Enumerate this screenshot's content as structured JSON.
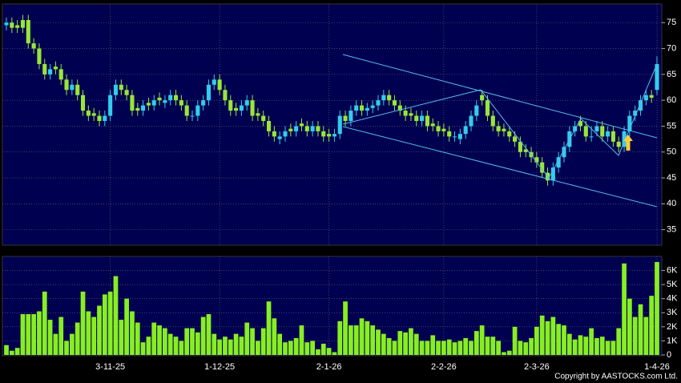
{
  "chart_data": {
    "type": "candlestick",
    "categories": [
      null,
      null,
      null,
      null,
      null,
      null,
      null,
      null,
      null,
      null,
      null,
      null,
      null,
      null,
      null,
      null,
      null,
      null,
      null,
      "3-11-25",
      null,
      null,
      null,
      null,
      null,
      null,
      null,
      null,
      null,
      null,
      null,
      null,
      null,
      null,
      null,
      null,
      null,
      null,
      null,
      "1-12-25",
      null,
      null,
      null,
      null,
      null,
      null,
      null,
      null,
      null,
      null,
      null,
      null,
      null,
      null,
      null,
      null,
      null,
      null,
      null,
      "2-1-26",
      null,
      null,
      null,
      null,
      null,
      null,
      null,
      null,
      null,
      null,
      null,
      null,
      null,
      null,
      null,
      null,
      null,
      null,
      null,
      null,
      "2-2-26",
      null,
      null,
      null,
      null,
      null,
      null,
      null,
      null,
      null,
      null,
      null,
      null,
      null,
      null,
      null,
      null,
      "2-3-26",
      null,
      null,
      null,
      null,
      null,
      null,
      null,
      null,
      null,
      null,
      null,
      null,
      null,
      null,
      null,
      null,
      null,
      null,
      null,
      null,
      null,
      "1-4-26"
    ],
    "open": [
      74.5,
      75,
      74.5,
      75.5,
      75.5,
      71,
      70,
      67,
      65,
      66.5,
      66,
      64,
      62,
      63,
      61,
      58,
      57.5,
      57,
      56,
      57,
      61,
      63,
      62,
      61,
      58.5,
      58,
      59.5,
      59,
      60.5,
      59.5,
      60,
      61,
      60,
      59,
      57,
      57,
      59,
      60,
      63,
      64,
      62,
      60,
      58.5,
      58,
      59,
      60,
      57.5,
      57,
      56,
      54,
      52.5,
      53,
      54.5,
      54,
      55.5,
      55,
      54,
      55,
      54,
      53.5,
      53,
      53.5,
      57,
      56,
      58,
      59,
      58,
      58.5,
      59,
      60,
      61,
      60,
      59,
      58,
      57.5,
      57,
      56,
      57,
      55.5,
      55,
      54.5,
      54,
      53,
      52.5,
      53.5,
      55,
      57,
      61,
      60,
      57,
      55,
      54.5,
      54,
      53,
      52,
      50.5,
      50,
      49,
      48,
      46,
      44.5,
      47,
      49,
      51,
      54,
      56,
      55,
      53,
      54,
      55,
      53,
      54,
      52,
      51,
      54,
      57,
      58,
      60,
      61,
      62
    ],
    "high": [
      76,
      76,
      75.5,
      76.5,
      76.5,
      72,
      71,
      68,
      67,
      67.5,
      67,
      65,
      64,
      64,
      62,
      59,
      58.5,
      58,
      58,
      62,
      64,
      64,
      63,
      62,
      59.5,
      60,
      60.5,
      61,
      61.5,
      61,
      62,
      62,
      61,
      60,
      58,
      60,
      61,
      64,
      65,
      65,
      63,
      61,
      59.5,
      60,
      61,
      61,
      58.5,
      58,
      57,
      55,
      54,
      55,
      55.5,
      56,
      56.5,
      56,
      56,
      56,
      55,
      54.5,
      54.5,
      58,
      58,
      59,
      60,
      60,
      59.5,
      60,
      61,
      62,
      62,
      61,
      60,
      59,
      58.5,
      58,
      58,
      58,
      56.5,
      56,
      55.5,
      55,
      54,
      54.5,
      56,
      58,
      60,
      62,
      61,
      58,
      56,
      55.5,
      55,
      54,
      53,
      51.5,
      51,
      50,
      49,
      47,
      48,
      50,
      52,
      55,
      56,
      57,
      56,
      55,
      56,
      56,
      55,
      55,
      53,
      55,
      58,
      59,
      61,
      62,
      62,
      68.5
    ],
    "low": [
      73.5,
      73,
      73,
      73,
      70,
      69,
      66,
      64,
      64,
      65,
      63,
      61,
      61,
      60,
      57,
      56,
      56,
      55,
      55,
      56,
      60,
      61,
      60,
      57,
      57,
      57,
      58,
      58,
      59,
      58.5,
      59,
      59,
      58,
      56,
      56,
      56,
      58,
      59,
      62,
      61,
      59,
      57,
      57,
      57,
      58,
      56,
      56,
      55,
      53,
      52,
      51.5,
      52,
      53,
      53,
      54,
      53,
      53,
      53,
      52,
      52,
      52,
      52.5,
      55,
      55,
      57,
      57,
      57,
      57.5,
      58,
      59,
      59,
      58,
      57,
      56,
      56,
      55,
      55,
      54,
      54,
      53,
      53,
      52,
      52,
      51.5,
      52.5,
      54,
      56,
      59,
      56,
      54,
      53,
      53,
      52,
      51,
      49,
      49,
      48,
      47,
      45,
      43.5,
      43.5,
      46,
      48,
      50,
      53,
      54,
      52,
      52,
      53,
      52,
      52,
      51,
      50,
      50,
      53,
      56,
      57,
      59,
      59.5,
      61
    ],
    "close": [
      75,
      74,
      74,
      74,
      71,
      70,
      67,
      65,
      66,
      66,
      64,
      62,
      63,
      61,
      58,
      57,
      57,
      56,
      57,
      61,
      63,
      62,
      61,
      58,
      58,
      59,
      59,
      60,
      60,
      60,
      61,
      60,
      59,
      57,
      57,
      59,
      60,
      63,
      64,
      62,
      60,
      58,
      58,
      59,
      60,
      57,
      57,
      56,
      54,
      53,
      53,
      54,
      54,
      55,
      55,
      54,
      55,
      54,
      53,
      53,
      53.5,
      57,
      56,
      58,
      59,
      58,
      58.5,
      59,
      60,
      61,
      60,
      59,
      58,
      57,
      57,
      56,
      57,
      55,
      55,
      54,
      54,
      53,
      53,
      53.5,
      55,
      57,
      59,
      60,
      57,
      55,
      54,
      54,
      53,
      52,
      50,
      50,
      49,
      48,
      46,
      44.5,
      47,
      49,
      51,
      54,
      55,
      55,
      53,
      53,
      55,
      53,
      54,
      52,
      51,
      54,
      57,
      58,
      60,
      61,
      60.5,
      67
    ],
    "up_color": "#33ccee",
    "down_color": "#99e639",
    "ylim": [
      32,
      78.6
    ],
    "yticks": [
      35,
      40,
      45,
      50,
      55,
      60,
      65,
      70,
      75
    ],
    "grid": true,
    "volume": {
      "color": "#88ee22",
      "values": [
        700,
        300,
        500,
        2900,
        2900,
        2900,
        3100,
        4500,
        2500,
        1500,
        2700,
        1000,
        1500,
        2300,
        4500,
        3100,
        2700,
        3500,
        4300,
        4500,
        5600,
        2500,
        4000,
        3100,
        2300,
        900,
        1300,
        2300,
        2100,
        1900,
        1500,
        1300,
        1000,
        1900,
        1900,
        1600,
        2700,
        2900,
        1500,
        1100,
        1300,
        1100,
        1500,
        1300,
        2300,
        1900,
        1000,
        1900,
        3800,
        2600,
        1500,
        900,
        1000,
        1200,
        2100,
        900,
        1000,
        400,
        800,
        500,
        200,
        2400,
        3800,
        2100,
        2100,
        2600,
        2400,
        2100,
        1800,
        1500,
        1200,
        1000,
        1700,
        1600,
        1900,
        1500,
        1000,
        1000,
        1400,
        1000,
        1000,
        1100,
        900,
        1000,
        1200,
        1000,
        1700,
        2100,
        1300,
        1300,
        1000,
        200,
        300,
        2000,
        1000,
        900,
        1200,
        2000,
        2800,
        2400,
        2700,
        2200,
        2100,
        1500,
        1100,
        1400,
        1300,
        1900,
        1200,
        1300,
        1000,
        1000,
        1900,
        6500,
        4000,
        2700,
        3600,
        2700,
        4200,
        6600
      ],
      "ylim": [
        0,
        7000
      ],
      "yticks": [
        0,
        {
          "value": 1000,
          "label": "1K"
        },
        {
          "value": 2000,
          "label": "2K"
        },
        {
          "value": 3000,
          "label": "3K"
        },
        {
          "value": 4000,
          "label": "4K"
        },
        {
          "value": 5000,
          "label": "5K"
        },
        {
          "value": 6000,
          "label": "6K"
        }
      ]
    },
    "credit": "Copyright by AASTOCKS.com Ltd."
  }
}
